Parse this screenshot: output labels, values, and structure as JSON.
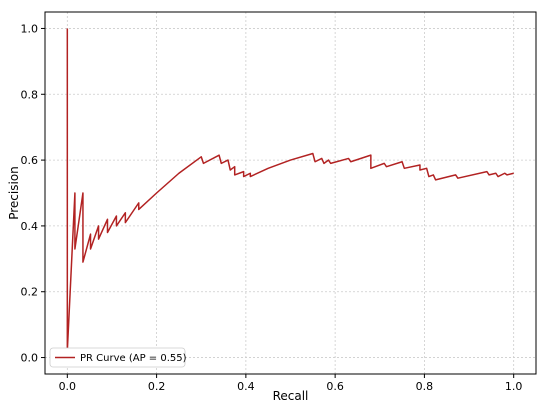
{
  "chart_data": {
    "type": "line",
    "title": "",
    "xlabel": "Recall",
    "ylabel": "Precision",
    "xlim": [
      -0.05,
      1.05
    ],
    "ylim": [
      -0.05,
      1.05
    ],
    "x_ticks": [
      "0.0",
      "0.2",
      "0.4",
      "0.6",
      "0.8",
      "1.0"
    ],
    "y_ticks": [
      "0.0",
      "0.2",
      "0.4",
      "0.6",
      "0.8",
      "1.0"
    ],
    "grid": true,
    "legend_position": "lower-left",
    "colors": {
      "line": "#b22222",
      "grid": "#cccccc"
    },
    "series": [
      {
        "name": "PR Curve (AP = 0.55)",
        "points": [
          [
            0.0,
            1.0
          ],
          [
            0.0,
            0.02
          ],
          [
            0.017,
            0.5
          ],
          [
            0.017,
            0.33
          ],
          [
            0.035,
            0.5
          ],
          [
            0.035,
            0.29
          ],
          [
            0.052,
            0.375
          ],
          [
            0.052,
            0.33
          ],
          [
            0.07,
            0.4
          ],
          [
            0.07,
            0.36
          ],
          [
            0.09,
            0.42
          ],
          [
            0.09,
            0.38
          ],
          [
            0.11,
            0.43
          ],
          [
            0.11,
            0.4
          ],
          [
            0.13,
            0.44
          ],
          [
            0.13,
            0.41
          ],
          [
            0.16,
            0.47
          ],
          [
            0.16,
            0.45
          ],
          [
            0.2,
            0.5
          ],
          [
            0.25,
            0.56
          ],
          [
            0.3,
            0.61
          ],
          [
            0.305,
            0.59
          ],
          [
            0.34,
            0.615
          ],
          [
            0.345,
            0.59
          ],
          [
            0.36,
            0.6
          ],
          [
            0.365,
            0.57
          ],
          [
            0.375,
            0.58
          ],
          [
            0.375,
            0.555
          ],
          [
            0.395,
            0.565
          ],
          [
            0.395,
            0.55
          ],
          [
            0.41,
            0.56
          ],
          [
            0.41,
            0.55
          ],
          [
            0.45,
            0.575
          ],
          [
            0.5,
            0.6
          ],
          [
            0.55,
            0.62
          ],
          [
            0.555,
            0.595
          ],
          [
            0.57,
            0.605
          ],
          [
            0.575,
            0.59
          ],
          [
            0.585,
            0.6
          ],
          [
            0.59,
            0.59
          ],
          [
            0.63,
            0.605
          ],
          [
            0.635,
            0.595
          ],
          [
            0.68,
            0.615
          ],
          [
            0.68,
            0.575
          ],
          [
            0.71,
            0.59
          ],
          [
            0.715,
            0.58
          ],
          [
            0.75,
            0.595
          ],
          [
            0.755,
            0.575
          ],
          [
            0.79,
            0.585
          ],
          [
            0.79,
            0.57
          ],
          [
            0.805,
            0.575
          ],
          [
            0.81,
            0.55
          ],
          [
            0.82,
            0.555
          ],
          [
            0.825,
            0.54
          ],
          [
            0.87,
            0.555
          ],
          [
            0.875,
            0.545
          ],
          [
            0.94,
            0.565
          ],
          [
            0.945,
            0.555
          ],
          [
            0.96,
            0.56
          ],
          [
            0.965,
            0.55
          ],
          [
            0.98,
            0.56
          ],
          [
            0.985,
            0.555
          ],
          [
            1.0,
            0.56
          ]
        ]
      }
    ]
  }
}
